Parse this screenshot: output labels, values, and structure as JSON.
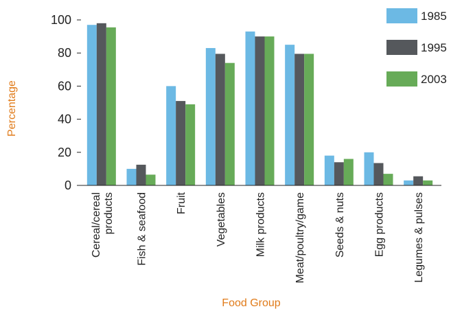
{
  "chart_data": {
    "type": "bar",
    "title": "",
    "xlabel": "Food Group",
    "ylabel": "Percentage",
    "ylim": [
      0,
      100
    ],
    "yticks": [
      0,
      20,
      40,
      60,
      80,
      100
    ],
    "grid": false,
    "legend_position": "top-right",
    "categories": [
      [
        "Cereal/cereal",
        "products"
      ],
      [
        "Fish & seafood"
      ],
      [
        "Fruit"
      ],
      [
        "Vegetables"
      ],
      [
        "Milk products"
      ],
      [
        "Meat/poultry/game"
      ],
      [
        "Seeds & nuts"
      ],
      [
        "Egg products"
      ],
      [
        "Legumes & pulses"
      ]
    ],
    "series": [
      {
        "name": "1985",
        "color": "#6cb9e4",
        "values": [
          97,
          10,
          60,
          83,
          93,
          85,
          18,
          20,
          3
        ]
      },
      {
        "name": "1995",
        "color": "#55585c",
        "values": [
          98,
          12.5,
          51,
          79.5,
          90,
          79.5,
          14,
          13.5,
          5.5
        ]
      },
      {
        "name": "2003",
        "color": "#67ab58",
        "values": [
          95.5,
          6.5,
          49,
          74,
          90,
          79.5,
          16,
          7,
          3
        ]
      }
    ]
  }
}
